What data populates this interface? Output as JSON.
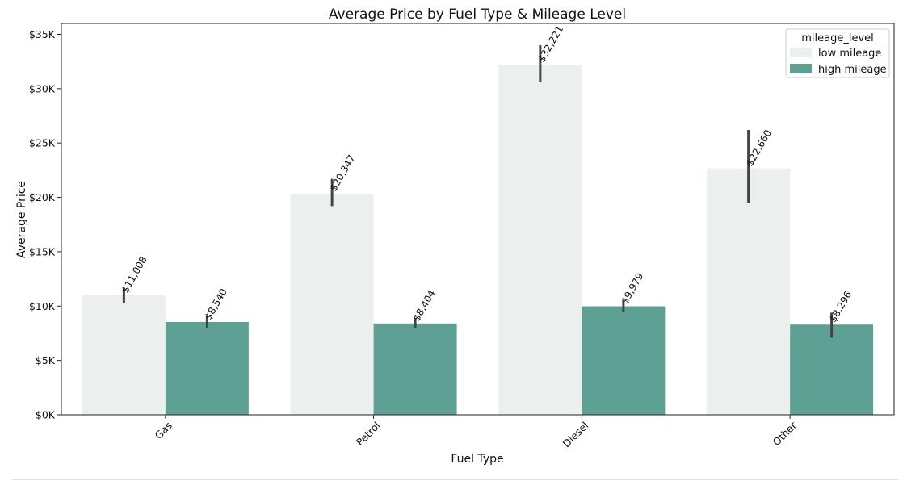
{
  "chart_data": {
    "type": "bar",
    "title": "Average Price by Fuel Type & Mileage Level",
    "xlabel": "Fuel Type",
    "ylabel": "Average Price",
    "categories": [
      "Gas",
      "Petrol",
      "Diesel",
      "Other"
    ],
    "ylim": [
      0,
      36000
    ],
    "yticks": [
      0,
      5000,
      10000,
      15000,
      20000,
      25000,
      30000,
      35000
    ],
    "ytick_labels": [
      "$0K",
      "$5K",
      "$10K",
      "$15K",
      "$20K",
      "$25K",
      "$30K",
      "$35K"
    ],
    "legend": {
      "title": "mileage_level",
      "placement": "top-right"
    },
    "grid": false,
    "series": [
      {
        "name": "low mileage",
        "color": "#ebefee",
        "values": [
          11008,
          20347,
          32221,
          22660
        ],
        "labels": [
          "$11,008",
          "$20,347",
          "$32,221",
          "$22,660"
        ],
        "error_low": [
          10300,
          19200,
          30600,
          19500
        ],
        "error_high": [
          11700,
          21700,
          34000,
          26200
        ]
      },
      {
        "name": "high mileage",
        "color": "#5fa094",
        "values": [
          8540,
          8404,
          9979,
          8296
        ],
        "labels": [
          "$8,540",
          "$8,404",
          "$9,979",
          "$8,296"
        ],
        "error_low": [
          8000,
          8000,
          9500,
          7100
        ],
        "error_high": [
          9100,
          8900,
          10500,
          9400
        ]
      }
    ]
  }
}
